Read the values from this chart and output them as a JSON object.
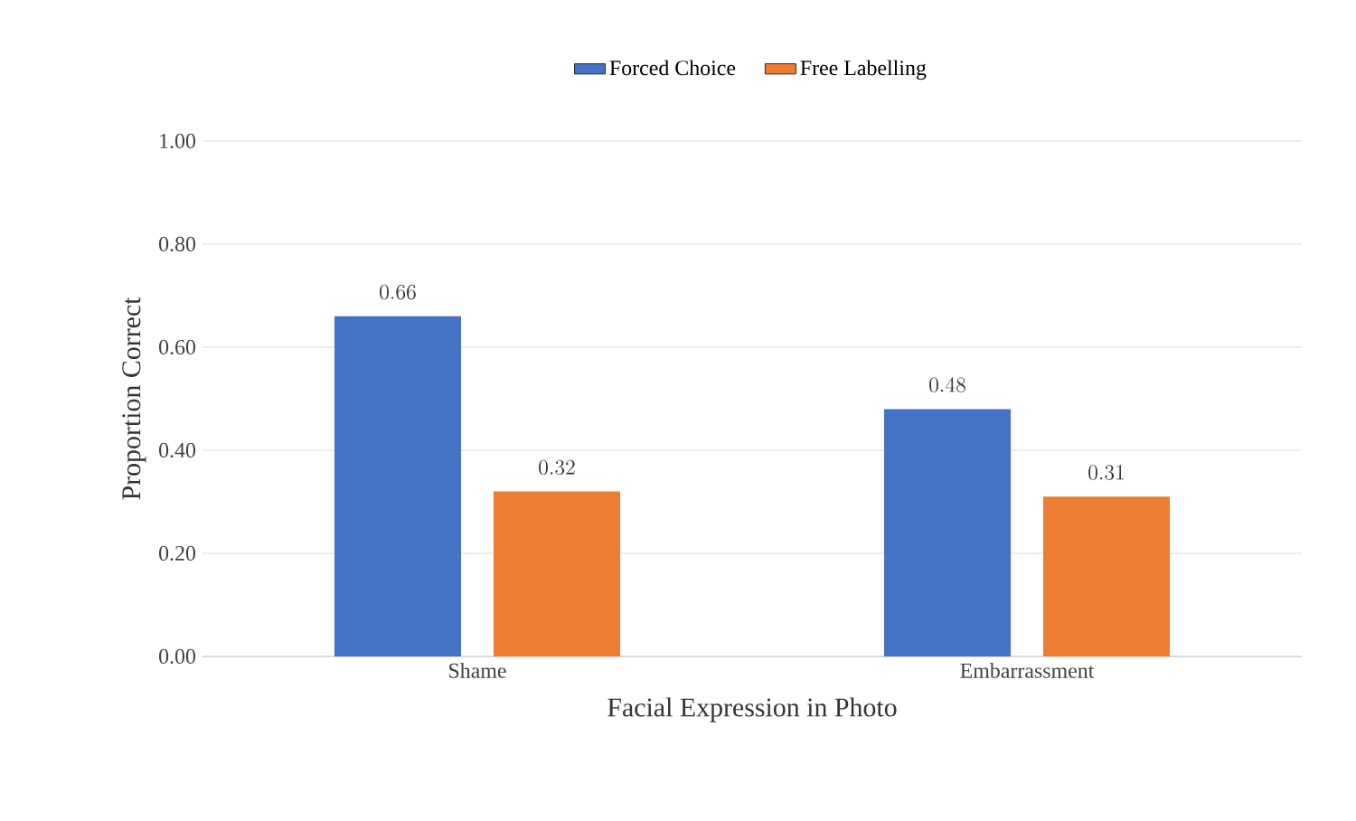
{
  "chart_data": {
    "type": "bar",
    "categories": [
      "Shame",
      "Embarrassment"
    ],
    "series": [
      {
        "name": "Forced Choice",
        "color": "#4472c4",
        "values": [
          0.66,
          0.48
        ]
      },
      {
        "name": "Free Labelling",
        "color": "#ed7d31",
        "values": [
          0.32,
          0.31
        ]
      }
    ],
    "xlabel": "Facial Expression in Photo",
    "ylabel": "Proportion Correct",
    "ylim": [
      0,
      1
    ],
    "yticks": [
      {
        "value": 0,
        "label": "0.00"
      },
      {
        "value": 0.2,
        "label": "0.20"
      },
      {
        "value": 0.4,
        "label": "0.40"
      },
      {
        "value": 0.6,
        "label": "0.60"
      },
      {
        "value": 0.8,
        "label": "0.80"
      },
      {
        "value": 1,
        "label": "1.00"
      }
    ],
    "grid": "y",
    "legend": "top",
    "data_labels": true
  }
}
